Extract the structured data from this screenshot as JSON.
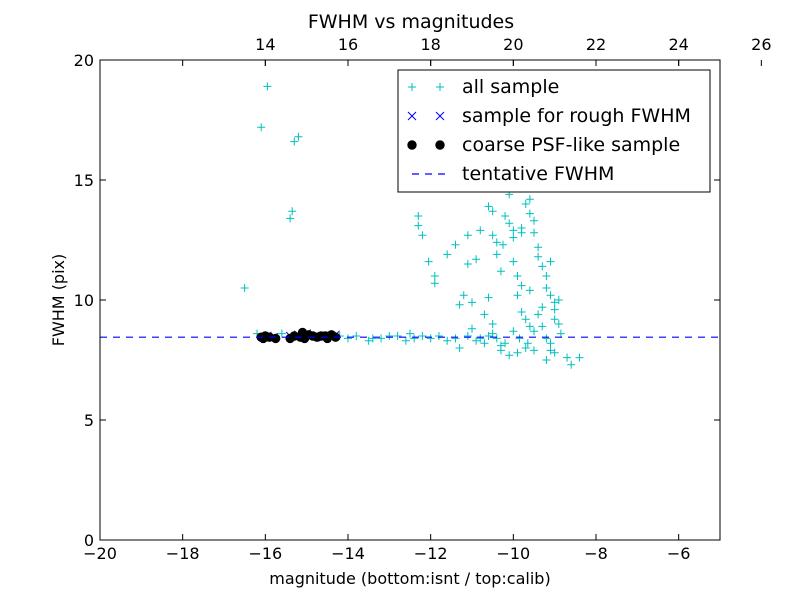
{
  "chart_data": {
    "type": "scatter",
    "title": "FWHM vs magnitudes",
    "xlabel": "magnitude (bottom:isnt / top:calib)",
    "ylabel": "FWHM (pix)",
    "xlim": [
      -20,
      -5
    ],
    "ylim": [
      0,
      20
    ],
    "x_ticks": [
      -20,
      -18,
      -16,
      -14,
      -12,
      -10,
      -8,
      -6
    ],
    "x_tick_labels": [
      "−20",
      "−18",
      "−16",
      "−14",
      "−12",
      "−10",
      "−8",
      "−6"
    ],
    "y_ticks": [
      0,
      5,
      10,
      15,
      20
    ],
    "y_tick_labels": [
      "0",
      "5",
      "10",
      "15",
      "20"
    ],
    "top_axis": {
      "offset": 30,
      "ticks": [
        14,
        16,
        18,
        20,
        22,
        24,
        26
      ],
      "tick_labels": [
        "14",
        "16",
        "18",
        "20",
        "22",
        "24",
        "26"
      ]
    },
    "grid": false,
    "legend_position": "top-right",
    "series": [
      {
        "name": "all sample",
        "marker": "+",
        "color": "#00bfbf",
        "points": [
          [
            -16.5,
            10.5
          ],
          [
            -16.1,
            17.2
          ],
          [
            -15.95,
            18.9
          ],
          [
            -15.3,
            16.6
          ],
          [
            -15.2,
            16.8
          ],
          [
            -15.35,
            13.7
          ],
          [
            -15.4,
            13.4
          ],
          [
            -16.2,
            8.6
          ],
          [
            -15.6,
            8.6
          ],
          [
            -14.2,
            8.5
          ],
          [
            -14.0,
            8.4
          ],
          [
            -13.8,
            8.5
          ],
          [
            -13.5,
            8.3
          ],
          [
            -13.4,
            8.4
          ],
          [
            -13.2,
            8.4
          ],
          [
            -13.0,
            8.5
          ],
          [
            -12.8,
            8.5
          ],
          [
            -12.6,
            8.3
          ],
          [
            -12.5,
            8.6
          ],
          [
            -12.4,
            8.4
          ],
          [
            -12.2,
            8.5
          ],
          [
            -12.0,
            8.4
          ],
          [
            -11.8,
            8.5
          ],
          [
            -11.6,
            8.3
          ],
          [
            -11.4,
            8.4
          ],
          [
            -11.3,
            8.0
          ],
          [
            -11.1,
            8.5
          ],
          [
            -10.9,
            8.3
          ],
          [
            -10.8,
            8.4
          ],
          [
            -10.7,
            8.2
          ],
          [
            -10.6,
            8.5
          ],
          [
            -10.4,
            8.4
          ],
          [
            -10.3,
            8.1
          ],
          [
            -10.2,
            8.2
          ],
          [
            -12.3,
            13.5
          ],
          [
            -12.3,
            13.1
          ],
          [
            -12.2,
            12.7
          ],
          [
            -12.05,
            11.6
          ],
          [
            -11.9,
            11.0
          ],
          [
            -11.9,
            10.7
          ],
          [
            -11.6,
            11.9
          ],
          [
            -11.4,
            12.3
          ],
          [
            -11.1,
            12.7
          ],
          [
            -11.1,
            11.5
          ],
          [
            -10.9,
            11.7
          ],
          [
            -11.2,
            10.2
          ],
          [
            -11.3,
            9.8
          ],
          [
            -11.0,
            9.9
          ],
          [
            -11.0,
            8.8
          ],
          [
            -10.7,
            9.4
          ],
          [
            -10.6,
            10.1
          ],
          [
            -10.5,
            9.0
          ],
          [
            -10.5,
            8.6
          ],
          [
            -10.8,
            12.9
          ],
          [
            -10.6,
            13.9
          ],
          [
            -10.5,
            13.7
          ],
          [
            -10.5,
            12.7
          ],
          [
            -10.4,
            12.4
          ],
          [
            -10.4,
            11.9
          ],
          [
            -10.3,
            11.2
          ],
          [
            -10.25,
            12.3
          ],
          [
            -10.2,
            13.5
          ],
          [
            -10.1,
            13.2
          ],
          [
            -10.1,
            14.4
          ],
          [
            -10.0,
            12.9
          ],
          [
            -10.0,
            12.6
          ],
          [
            -10.0,
            11.6
          ],
          [
            -9.9,
            11.0
          ],
          [
            -9.9,
            10.2
          ],
          [
            -9.8,
            13.0
          ],
          [
            -9.8,
            12.8
          ],
          [
            -9.7,
            14.0
          ],
          [
            -9.6,
            14.2
          ],
          [
            -9.6,
            13.6
          ],
          [
            -9.5,
            13.3
          ],
          [
            -9.5,
            12.8
          ],
          [
            -9.4,
            12.2
          ],
          [
            -9.4,
            11.8
          ],
          [
            -9.3,
            11.4
          ],
          [
            -9.2,
            11.0
          ],
          [
            -9.2,
            10.5
          ],
          [
            -9.1,
            11.6
          ],
          [
            -9.1,
            10.2
          ],
          [
            -9.0,
            9.9
          ],
          [
            -9.0,
            9.6
          ],
          [
            -9.0,
            9.2
          ],
          [
            -8.9,
            10.0
          ],
          [
            -8.9,
            9.0
          ],
          [
            -8.85,
            8.6
          ],
          [
            -9.8,
            9.5
          ],
          [
            -9.7,
            9.2
          ],
          [
            -9.6,
            8.9
          ],
          [
            -9.5,
            8.7
          ],
          [
            -9.4,
            9.4
          ],
          [
            -9.3,
            8.9
          ],
          [
            -9.2,
            8.4
          ],
          [
            -9.1,
            8.2
          ],
          [
            -9.1,
            7.9
          ],
          [
            -9.0,
            7.8
          ],
          [
            -9.2,
            7.5
          ],
          [
            -9.5,
            7.9
          ],
          [
            -9.7,
            8.0
          ],
          [
            -9.9,
            7.8
          ],
          [
            -10.1,
            7.7
          ],
          [
            -10.3,
            7.9
          ],
          [
            -10.0,
            8.7
          ],
          [
            -9.85,
            8.4
          ],
          [
            -9.65,
            8.2
          ],
          [
            -8.7,
            7.6
          ],
          [
            -8.6,
            7.3
          ],
          [
            -8.4,
            7.6
          ],
          [
            -9.3,
            9.7
          ],
          [
            -9.6,
            10.4
          ],
          [
            -9.8,
            10.6
          ]
        ]
      },
      {
        "name": "sample for rough FWHM",
        "marker": "x",
        "color": "#0000ff",
        "points": [
          [
            -16.05,
            8.45
          ],
          [
            -15.95,
            8.5
          ],
          [
            -15.8,
            8.45
          ],
          [
            -15.4,
            8.5
          ],
          [
            -15.2,
            8.55
          ],
          [
            -15.0,
            8.6
          ],
          [
            -14.8,
            8.5
          ],
          [
            -14.6,
            8.45
          ],
          [
            -14.4,
            8.5
          ],
          [
            -14.3,
            8.55
          ]
        ]
      },
      {
        "name": "coarse PSF-like sample",
        "marker": "o",
        "color": "#000000",
        "points": [
          [
            -16.1,
            8.45
          ],
          [
            -16.0,
            8.5
          ],
          [
            -15.9,
            8.45
          ],
          [
            -15.75,
            8.4
          ],
          [
            -15.4,
            8.4
          ],
          [
            -15.3,
            8.5
          ],
          [
            -15.1,
            8.65
          ],
          [
            -15.05,
            8.4
          ],
          [
            -14.95,
            8.55
          ],
          [
            -14.85,
            8.5
          ],
          [
            -14.75,
            8.45
          ],
          [
            -14.65,
            8.5
          ],
          [
            -14.5,
            8.4
          ],
          [
            -14.4,
            8.55
          ],
          [
            -14.3,
            8.45
          ],
          [
            -16.05,
            8.4
          ],
          [
            -15.15,
            8.45
          ],
          [
            -14.55,
            8.5
          ]
        ]
      },
      {
        "name": "tentative FWHM",
        "marker": "dashed-line",
        "color": "#0000ff",
        "y": 8.45
      }
    ]
  }
}
